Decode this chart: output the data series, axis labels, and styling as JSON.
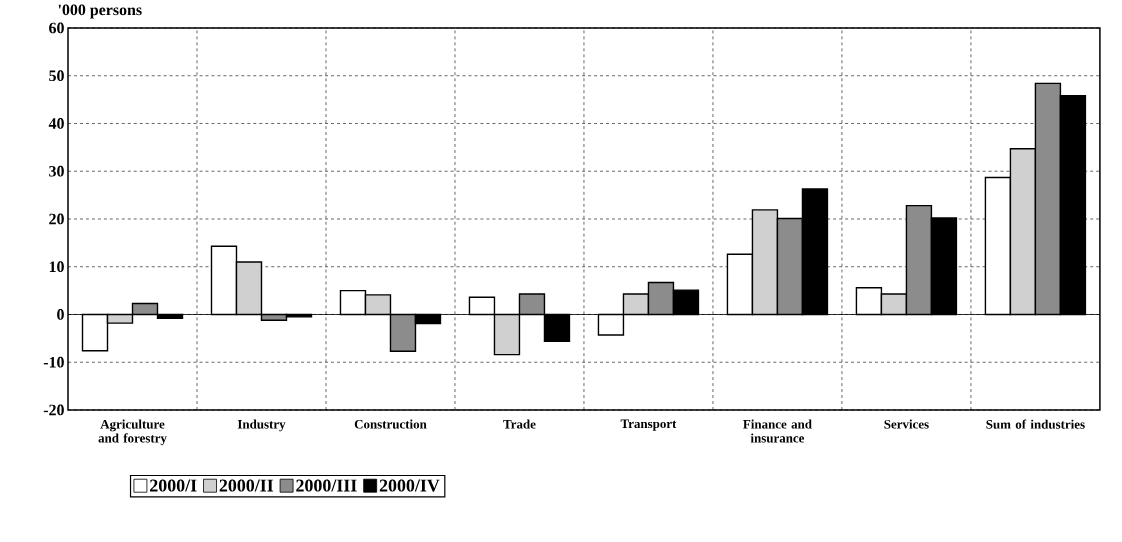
{
  "chart_data": {
    "type": "bar",
    "ylabel": "'000 persons",
    "categories": [
      "Agriculture and forestry",
      "Industry",
      "Construction",
      "Trade",
      "Transport",
      "Finance and insurance",
      "Services",
      "Sum of industries"
    ],
    "series": [
      {
        "name": "2000/I",
        "color": "#ffffff",
        "values": [
          -7.6,
          14.3,
          5.0,
          3.6,
          -4.3,
          12.6,
          5.6,
          28.7
        ]
      },
      {
        "name": "2000/II",
        "color": "#d0d0d0",
        "values": [
          -1.8,
          11.0,
          4.1,
          -8.4,
          4.3,
          21.9,
          4.3,
          34.7
        ]
      },
      {
        "name": "2000/III",
        "color": "#8c8c8c",
        "values": [
          2.3,
          -1.2,
          -7.7,
          4.3,
          6.7,
          20.1,
          22.8,
          48.4
        ]
      },
      {
        "name": "2000/IV",
        "color": "#000000",
        "values": [
          -0.8,
          -0.5,
          -1.9,
          -5.6,
          5.1,
          26.3,
          20.2,
          45.8
        ]
      }
    ],
    "ylim": [
      -20,
      60
    ],
    "yticks": [
      -20,
      -10,
      0,
      10,
      20,
      30,
      40,
      50,
      60
    ],
    "grid": true,
    "legend": "bottom"
  }
}
